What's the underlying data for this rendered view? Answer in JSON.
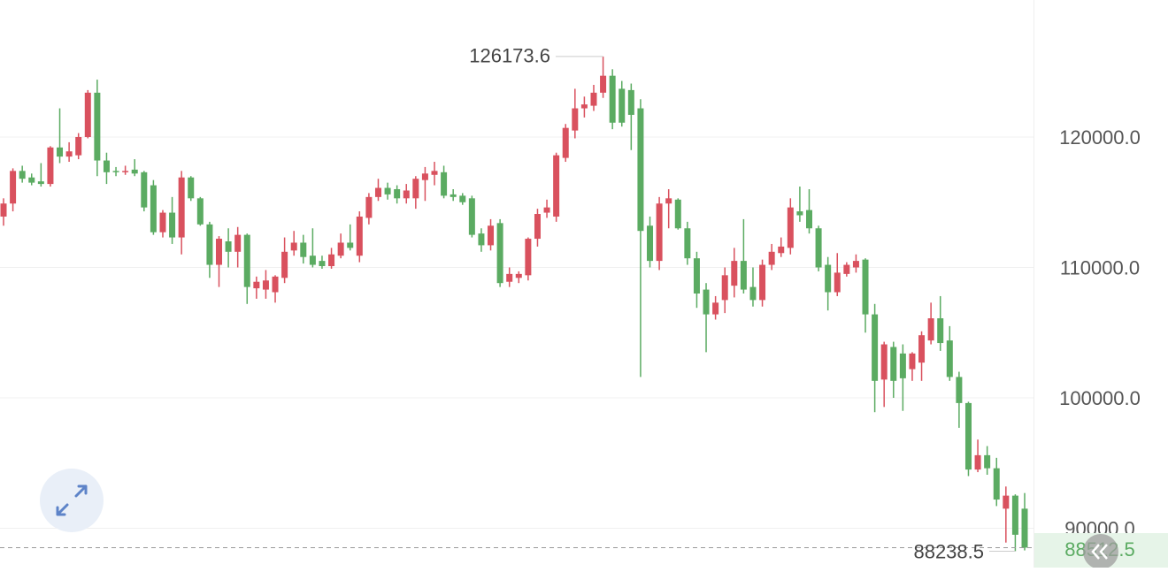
{
  "chart_data": {
    "type": "candlestick",
    "up_color": "#d9515e",
    "down_color": "#5bab62",
    "ylim": [
      86983,
      130508
    ],
    "yticks": [
      {
        "value": 90000,
        "label": "90000.0"
      },
      {
        "value": 100000,
        "label": "100000.0"
      },
      {
        "value": 110000,
        "label": "110000.0"
      },
      {
        "value": 120000,
        "label": "120000.0"
      }
    ],
    "grid": true,
    "open": [
      113900,
      114900,
      117400,
      116900,
      116600,
      116400,
      119200,
      118500,
      118600,
      120000,
      123400,
      118200,
      117400,
      117300,
      117500,
      117300,
      116300,
      112700,
      114200,
      112300,
      116900,
      115300,
      113300,
      110200,
      112000,
      111200,
      112500,
      108400,
      108300,
      108100,
      109200,
      111300,
      111900,
      110900,
      110500,
      110100,
      110900,
      111900,
      110900,
      113800,
      115400,
      116100,
      116000,
      115300,
      115300,
      116700,
      117100,
      117300,
      115600,
      115500,
      115300,
      112600,
      111700,
      113400,
      108900,
      109200,
      109400,
      112200,
      114200,
      113900,
      118400,
      120500,
      122200,
      122400,
      123400,
      124700,
      123700,
      123600,
      122200,
      113200,
      110500,
      114900,
      115200,
      113000,
      110700,
      108300,
      106400,
      107500,
      108600,
      110500,
      108500,
      107500,
      110200,
      111100,
      111500,
      114300,
      114400,
      113000,
      110200,
      108100,
      109500,
      110000,
      110600,
      106400,
      101400,
      103900,
      103400,
      102200,
      102700,
      104400,
      106100,
      104400,
      101600,
      99600,
      94500,
      95600,
      94600,
      91500,
      92500,
      91500
    ],
    "high": [
      115300,
      117600,
      117800,
      117200,
      118000,
      119300,
      122200,
      119600,
      120300,
      123600,
      124400,
      118800,
      117700,
      117800,
      118300,
      117400,
      116700,
      114400,
      115400,
      117400,
      117000,
      115400,
      113500,
      112400,
      113000,
      113100,
      112600,
      109300,
      109800,
      109400,
      112300,
      112800,
      112500,
      113000,
      110900,
      111500,
      112600,
      113300,
      114300,
      115700,
      116800,
      116500,
      116300,
      116400,
      117000,
      117700,
      118100,
      117800,
      116000,
      115700,
      115500,
      113000,
      113700,
      113700,
      110000,
      109700,
      112300,
      114500,
      115200,
      118800,
      121000,
      123700,
      123100,
      124000,
      126173.6,
      125200,
      124300,
      124100,
      122900,
      113900,
      115400,
      116000,
      115300,
      113500,
      111200,
      108800,
      107800,
      110000,
      111500,
      113700,
      110000,
      110600,
      111800,
      112300,
      115300,
      116200,
      116000,
      113200,
      110800,
      111100,
      110400,
      111000,
      110700,
      107200,
      104300,
      104300,
      104100,
      103500,
      105100,
      107300,
      107800,
      105500,
      102000,
      99700,
      96800,
      96300,
      95400,
      93200,
      92600,
      92700
    ],
    "low": [
      113200,
      114300,
      116500,
      116300,
      116200,
      116200,
      118000,
      118100,
      118300,
      119900,
      117000,
      116400,
      117000,
      117100,
      117000,
      114300,
      112500,
      112300,
      111800,
      111000,
      115100,
      113200,
      109200,
      108500,
      110000,
      110000,
      107200,
      107600,
      107600,
      107300,
      108800,
      110900,
      110300,
      110000,
      109900,
      109900,
      110700,
      111300,
      110400,
      113300,
      115100,
      115200,
      114900,
      114900,
      114500,
      115100,
      116300,
      115300,
      115100,
      114800,
      112300,
      111200,
      111300,
      108500,
      108500,
      108800,
      109000,
      111600,
      113800,
      113500,
      118100,
      119900,
      121500,
      122000,
      123000,
      120600,
      120800,
      119000,
      101600,
      110000,
      109800,
      113000,
      112900,
      110200,
      106900,
      103500,
      106000,
      106500,
      107700,
      108000,
      107000,
      107000,
      109800,
      110800,
      111000,
      113500,
      112600,
      109700,
      106700,
      107800,
      109300,
      109600,
      105000,
      98900,
      99300,
      100000,
      99000,
      101300,
      101300,
      104100,
      103600,
      101300,
      97700,
      94000,
      94300,
      94100,
      91700,
      88900,
      88238.5,
      88300
    ],
    "close": [
      114900,
      117400,
      116800,
      116500,
      116400,
      119200,
      118500,
      118900,
      120000,
      123400,
      118200,
      117300,
      117300,
      117400,
      117200,
      114600,
      112700,
      114200,
      112300,
      116900,
      115300,
      113300,
      110200,
      112200,
      111200,
      112500,
      108500,
      108900,
      109000,
      109300,
      111200,
      111900,
      110800,
      110200,
      110100,
      111000,
      111900,
      111500,
      113900,
      115400,
      116100,
      115600,
      115300,
      115900,
      116800,
      117200,
      117400,
      115500,
      115400,
      115000,
      112500,
      111700,
      113200,
      108800,
      109500,
      109500,
      112200,
      114100,
      114600,
      118600,
      120700,
      122200,
      122500,
      123400,
      124700,
      121100,
      121100,
      121700,
      112800,
      110500,
      114900,
      115300,
      113000,
      110700,
      108000,
      106400,
      107300,
      109400,
      110500,
      108300,
      107500,
      110200,
      111200,
      111600,
      114600,
      114000,
      113000,
      110000,
      108100,
      109600,
      110200,
      110500,
      106400,
      101300,
      104100,
      101300,
      101500,
      103400,
      104800,
      106100,
      104200,
      101600,
      99600,
      94500,
      95600,
      94600,
      92200,
      92500,
      89500,
      88512.5
    ]
  }
}
